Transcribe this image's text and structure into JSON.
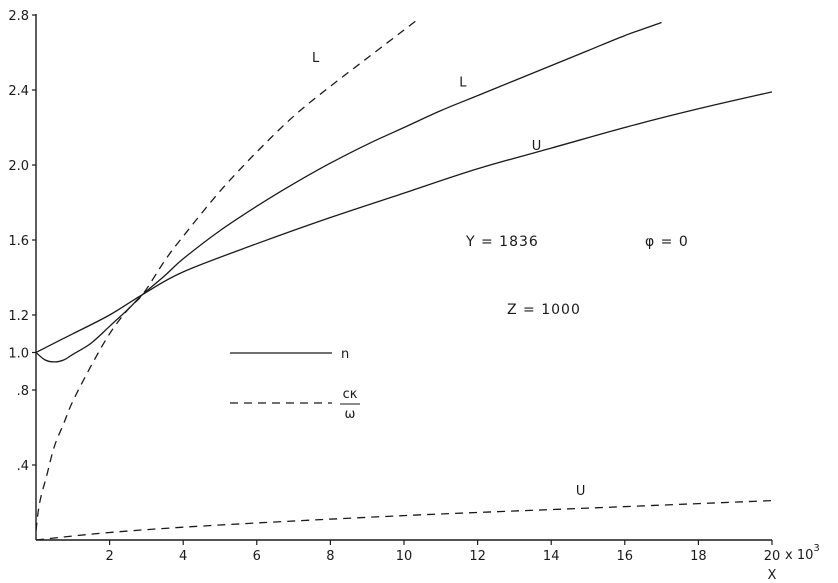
{
  "chart_data": {
    "type": "line",
    "title": "",
    "xlabel": "X",
    "x_multiplier_label": "x 10",
    "x_multiplier_exp": "3",
    "ylabel": "",
    "xlim": [
      0,
      20
    ],
    "ylim": [
      0,
      2.8
    ],
    "x_ticks": [
      {
        "v": 2,
        "label": "2"
      },
      {
        "v": 4,
        "label": "4"
      },
      {
        "v": 6,
        "label": "6"
      },
      {
        "v": 8,
        "label": "8"
      },
      {
        "v": 10,
        "label": "10"
      },
      {
        "v": 12,
        "label": "12"
      },
      {
        "v": 14,
        "label": "14"
      },
      {
        "v": 16,
        "label": "16"
      },
      {
        "v": 18,
        "label": "18"
      },
      {
        "v": 20,
        "label": "20"
      }
    ],
    "y_ticks": [
      {
        "v": 0.4,
        "label": ".4"
      },
      {
        "v": 0.8,
        "label": ".8"
      },
      {
        "v": 1.0,
        "label": "1.0"
      },
      {
        "v": 1.2,
        "label": "1.2"
      },
      {
        "v": 1.6,
        "label": "1.6"
      },
      {
        "v": 2.0,
        "label": "2.0"
      },
      {
        "v": 2.4,
        "label": "2.4"
      },
      {
        "v": 2.8,
        "label": "2.8"
      }
    ],
    "grid": false,
    "legend_position": "center-left",
    "legend": [
      {
        "label": "n",
        "style": "solid"
      },
      {
        "label_num": "cκ",
        "label_den": "ω",
        "style": "dashed"
      }
    ],
    "parameters": {
      "y": "Y  =  1836",
      "phi": "φ  =  0",
      "z": "Z  =  1000"
    },
    "series": [
      {
        "name": "L",
        "quantity": "n",
        "style": "solid",
        "points": [
          [
            0,
            1.0
          ],
          [
            0.25,
            0.96
          ],
          [
            0.5,
            0.95
          ],
          [
            0.75,
            0.96
          ],
          [
            1,
            0.99
          ],
          [
            1.5,
            1.05
          ],
          [
            2,
            1.14
          ],
          [
            2.5,
            1.23
          ],
          [
            2.9,
            1.31
          ],
          [
            3.5,
            1.41
          ],
          [
            4,
            1.5
          ],
          [
            5,
            1.65
          ],
          [
            6,
            1.78
          ],
          [
            7,
            1.9
          ],
          [
            8,
            2.01
          ],
          [
            9,
            2.11
          ],
          [
            10,
            2.2
          ],
          [
            11,
            2.29
          ],
          [
            12,
            2.37
          ],
          [
            13,
            2.45
          ],
          [
            14,
            2.53
          ],
          [
            15,
            2.61
          ],
          [
            16,
            2.69
          ],
          [
            17,
            2.76
          ]
        ],
        "label_at": [
          11.6,
          2.42
        ]
      },
      {
        "name": "U",
        "quantity": "n",
        "style": "solid",
        "points": [
          [
            0,
            1.0
          ],
          [
            0.5,
            1.05
          ],
          [
            1,
            1.1
          ],
          [
            2,
            1.2
          ],
          [
            2.9,
            1.31
          ],
          [
            4,
            1.43
          ],
          [
            6,
            1.58
          ],
          [
            8,
            1.72
          ],
          [
            10,
            1.85
          ],
          [
            12,
            1.98
          ],
          [
            14,
            2.09
          ],
          [
            16,
            2.2
          ],
          [
            18,
            2.3
          ],
          [
            20,
            2.39
          ]
        ],
        "label_at": [
          13.6,
          2.08
        ]
      },
      {
        "name": "L",
        "quantity": "cκ/ω",
        "style": "dashed",
        "points": [
          [
            0,
            0.05
          ],
          [
            0.1,
            0.2
          ],
          [
            0.3,
            0.35
          ],
          [
            0.5,
            0.5
          ],
          [
            0.75,
            0.62
          ],
          [
            1,
            0.74
          ],
          [
            1.5,
            0.93
          ],
          [
            2,
            1.1
          ],
          [
            2.5,
            1.23
          ],
          [
            2.9,
            1.31
          ],
          [
            3.5,
            1.49
          ],
          [
            4,
            1.62
          ],
          [
            5,
            1.86
          ],
          [
            6,
            2.07
          ],
          [
            7,
            2.26
          ],
          [
            8,
            2.42
          ],
          [
            9,
            2.57
          ],
          [
            10,
            2.72
          ],
          [
            10.4,
            2.78
          ]
        ],
        "label_at": [
          7.6,
          2.55
        ]
      },
      {
        "name": "U",
        "quantity": "cκ/ω",
        "style": "dashed",
        "points": [
          [
            0,
            0.0
          ],
          [
            2,
            0.04
          ],
          [
            5,
            0.08
          ],
          [
            10,
            0.13
          ],
          [
            15,
            0.17
          ],
          [
            20,
            0.21
          ]
        ],
        "label_at": [
          14.8,
          0.24
        ]
      }
    ]
  }
}
